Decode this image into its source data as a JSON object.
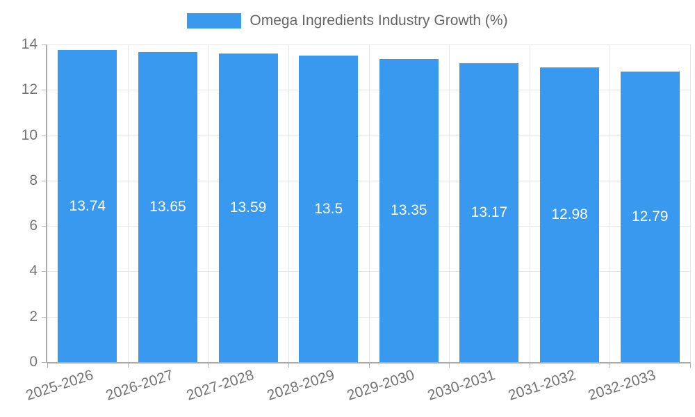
{
  "chart_data": {
    "type": "bar",
    "title": "Omega Ingredients Industry Growth (%)",
    "categories": [
      "2025-2026",
      "2026-2027",
      "2027-2028",
      "2028-2029",
      "2029-2030",
      "2030-2031",
      "2031-2032",
      "2032-2033"
    ],
    "series": [
      {
        "name": "Omega Ingredients Industry Growth (%)",
        "values": [
          13.74,
          13.65,
          13.59,
          13.5,
          13.35,
          13.17,
          12.98,
          12.79
        ],
        "value_labels": [
          "13.74",
          "13.65",
          "13.59",
          "13.5",
          "13.35",
          "13.17",
          "12.98",
          "12.79"
        ]
      }
    ],
    "xlabel": "",
    "ylabel": "",
    "ylim": [
      0,
      14
    ],
    "y_ticks": [
      0,
      2,
      4,
      6,
      8,
      10,
      12,
      14
    ],
    "grid": true,
    "legend_position": "top",
    "colors": {
      "bar": "#3899ee",
      "grid": "#e6e6e6",
      "axis_border": "#a9a9a9",
      "tick_mark": "#b5b5b5",
      "tick_text": "#757575",
      "legend_text": "#666666",
      "value_text": "#ffffff",
      "background": "#ffffff"
    }
  }
}
